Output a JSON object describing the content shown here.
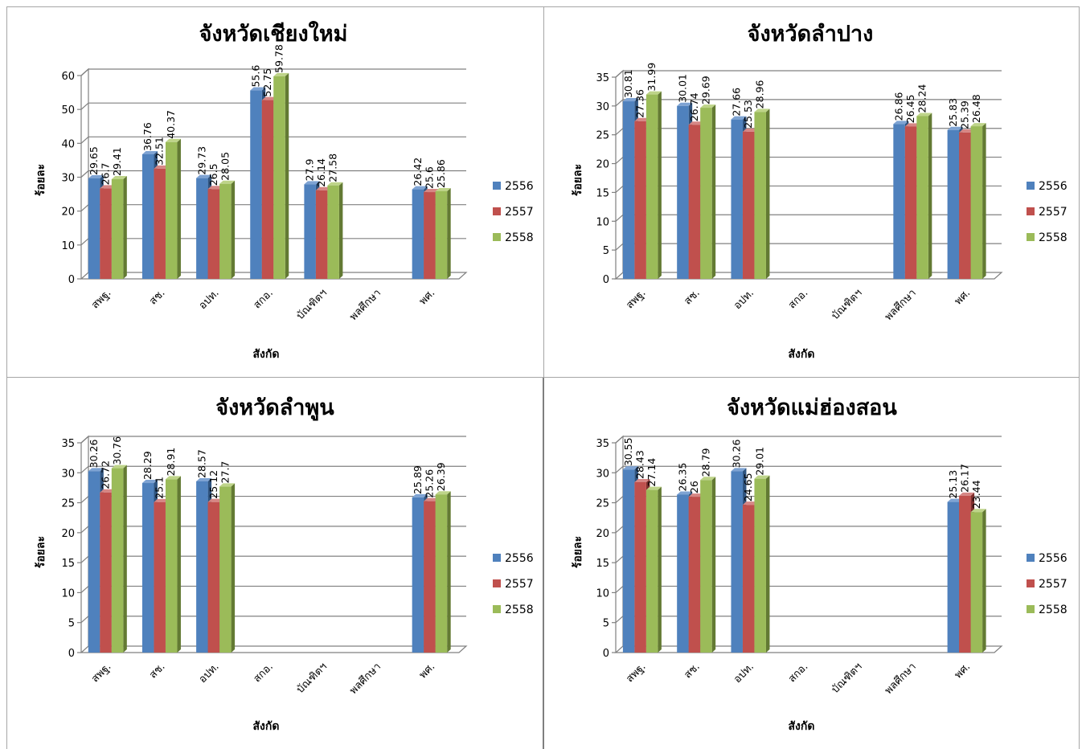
{
  "legend": [
    "2556",
    "2557",
    "2558"
  ],
  "colors": {
    "2556": {
      "front": "#4f81bd",
      "top": "#7ea3d3",
      "side": "#2f5480"
    },
    "2557": {
      "front": "#c0504d",
      "top": "#d68785",
      "side": "#7f2f2d"
    },
    "2558": {
      "front": "#9bbb59",
      "top": "#bed489",
      "side": "#637a33"
    }
  },
  "chart_data": [
    {
      "type": "bar",
      "title": "จังหวัดเชียงใหม่",
      "xlabel": "สังกัด",
      "ylabel": "ร้อยละ",
      "ylim": [
        0,
        60
      ],
      "yticks": [
        0,
        10,
        20,
        30,
        40,
        50,
        60
      ],
      "categories": [
        "สพฐ.",
        "สช.",
        "อปท.",
        "สกอ.",
        "บัณฑิตฯ",
        "พลศึกษา",
        "พศ."
      ],
      "series": [
        {
          "name": "2556",
          "values": [
            29.65,
            36.76,
            29.73,
            55.6,
            27.9,
            null,
            26.42
          ]
        },
        {
          "name": "2557",
          "values": [
            26.7,
            32.51,
            26.5,
            52.75,
            26.14,
            null,
            25.6
          ]
        },
        {
          "name": "2558",
          "values": [
            29.41,
            40.37,
            28.05,
            59.78,
            27.58,
            null,
            25.86
          ]
        }
      ],
      "grid": true,
      "legend_position": "right"
    },
    {
      "type": "bar",
      "title": "จังหวัดลำปาง",
      "xlabel": "สังกัด",
      "ylabel": "ร้อยละ",
      "ylim": [
        0,
        35
      ],
      "yticks": [
        0,
        5,
        10,
        15,
        20,
        25,
        30,
        35
      ],
      "categories": [
        "สพฐ.",
        "สช.",
        "อปท.",
        "สกอ.",
        "บัณฑิตฯ",
        "พลศึกษา",
        "พศ."
      ],
      "series": [
        {
          "name": "2556",
          "values": [
            30.81,
            30.01,
            27.66,
            null,
            null,
            26.86,
            25.83
          ]
        },
        {
          "name": "2557",
          "values": [
            27.36,
            26.74,
            25.53,
            null,
            null,
            26.45,
            25.39
          ]
        },
        {
          "name": "2558",
          "values": [
            31.99,
            29.69,
            28.96,
            null,
            null,
            28.24,
            26.48
          ]
        }
      ],
      "grid": true,
      "legend_position": "right"
    },
    {
      "type": "bar",
      "title": "จังหวัดลำพูน",
      "xlabel": "สังกัด",
      "ylabel": "ร้อยละ",
      "ylim": [
        0,
        35
      ],
      "yticks": [
        0,
        5,
        10,
        15,
        20,
        25,
        30,
        35
      ],
      "categories": [
        "สพฐ.",
        "สช.",
        "อปท.",
        "สกอ.",
        "บัณฑิตฯ",
        "พลศึกษา",
        "พศ."
      ],
      "series": [
        {
          "name": "2556",
          "values": [
            30.26,
            28.29,
            28.57,
            null,
            null,
            null,
            25.89
          ]
        },
        {
          "name": "2557",
          "values": [
            26.72,
            25.1,
            25.12,
            null,
            null,
            null,
            25.26
          ]
        },
        {
          "name": "2558",
          "values": [
            30.76,
            28.91,
            27.7,
            null,
            null,
            null,
            26.39
          ]
        }
      ],
      "grid": true,
      "legend_position": "right"
    },
    {
      "type": "bar",
      "title": "จังหวัดแม่ฮ่องสอน",
      "xlabel": "สังกัด",
      "ylabel": "ร้อยละ",
      "ylim": [
        0,
        35
      ],
      "yticks": [
        0,
        5,
        10,
        15,
        20,
        25,
        30,
        35
      ],
      "categories": [
        "สพฐ.",
        "สช.",
        "อปท.",
        "สกอ.",
        "บัณฑิตฯ",
        "พลศึกษา",
        "พศ."
      ],
      "series": [
        {
          "name": "2556",
          "values": [
            30.55,
            26.35,
            30.26,
            null,
            null,
            null,
            25.13
          ]
        },
        {
          "name": "2557",
          "values": [
            28.43,
            26,
            24.65,
            null,
            null,
            null,
            26.17
          ]
        },
        {
          "name": "2558",
          "values": [
            27.14,
            28.79,
            29.01,
            null,
            null,
            null,
            23.44
          ]
        }
      ],
      "grid": true,
      "legend_position": "right"
    }
  ]
}
